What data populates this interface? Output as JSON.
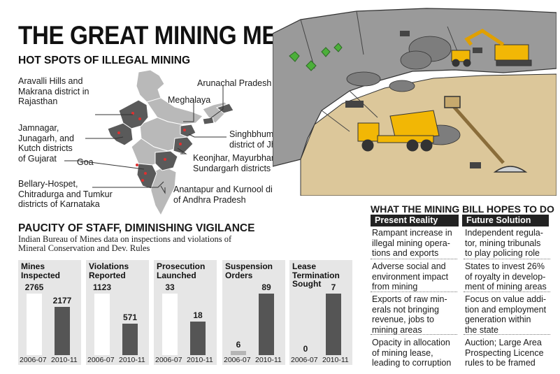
{
  "header": {
    "title": "THE GREAT MINING MESS",
    "subtitle": "HOT SPOTS OF ILLEGAL MINING"
  },
  "map_labels": {
    "rajasthan": [
      "Aravalli Hills and",
      "Makrana district in",
      "Rajasthan"
    ],
    "gujarat": [
      "Jamnagar,",
      "Junagarh, and",
      "Kutch districts",
      "of Gujarat"
    ],
    "goa": "Goa",
    "karnataka": [
      "Bellary-Hospet,",
      "Chitradurga and Tumkur",
      "districts of Karnataka"
    ],
    "arunachal": "Arunachal Pradesh",
    "meghalaya": "Meghalaya",
    "jharkhand": [
      "Singhbhum (West)",
      "district of Jharkhand"
    ],
    "orissa": [
      "Keonjhar, Mayurbhanj and",
      "Sundargarh districts of Orissa"
    ],
    "andhra": [
      "Anantapur and Kurnool districts",
      "of Andhra Pradesh"
    ]
  },
  "staff": {
    "title": "PAUCITY OF STAFF, DIMINISHING VIGILANCE",
    "subtitle": "Indian Bureau of Mines data on inspections and violations of Mineral Conservation and Dev. Rules"
  },
  "chart_data": {
    "type": "bar",
    "categories": [
      "2006-07",
      "2010-11"
    ],
    "panels": [
      {
        "title": "Mines Inspected",
        "values": [
          2765,
          2177
        ]
      },
      {
        "title": "Violations Reported",
        "values": [
          1123,
          571
        ]
      },
      {
        "title": "Prosecution Launched",
        "values": [
          33,
          18
        ]
      },
      {
        "title": "Suspension Orders",
        "values": [
          6,
          89
        ]
      },
      {
        "title": "Lease Termination Sought",
        "values": [
          0,
          7
        ]
      }
    ]
  },
  "bill": {
    "title": "WHAT THE MINING BILL HOPES TO DO",
    "present_head": "Present Reality",
    "future_head": "Future Solution",
    "present": [
      [
        "Rampant increase in",
        "illegal mining opera-",
        "tions and exports"
      ],
      [
        "Adverse social and",
        "environment impact",
        "from mining"
      ],
      [
        "Exports of raw min-",
        "erals not bringing",
        "revenue, jobs to",
        "mining areas"
      ],
      [
        "Opacity in allocation",
        "of mining lease,",
        "leading to corruption"
      ]
    ],
    "future": [
      [
        "Independent regula-",
        "tor, mining tribunals",
        "to play policing role"
      ],
      [
        "States to invest 26%",
        "of royalty in develop-",
        "ment of mining areas"
      ],
      [
        "Focus on value addi-",
        "tion and employment",
        "generation within",
        "the state"
      ],
      [
        "Auction; Large Area",
        "Prospecting Licence",
        "rules to be framed"
      ]
    ]
  },
  "colors": {
    "bar_old": "#ffffff",
    "bar_new": "#555555",
    "panel_bg": "#e6e6e6",
    "map_state": "#b8b8b8",
    "map_hotspot": "#555555",
    "truck_yellow": "#f2b705"
  }
}
